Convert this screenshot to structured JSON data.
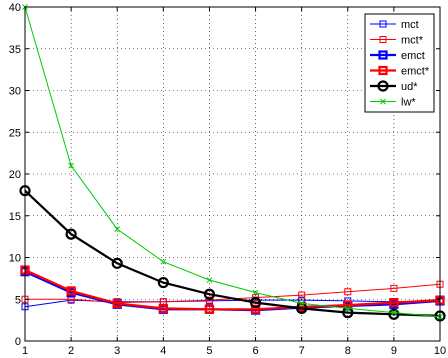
{
  "chart_data": {
    "type": "line",
    "x": [
      1,
      2,
      3,
      4,
      5,
      6,
      7,
      8,
      9,
      10
    ],
    "xlim": [
      1,
      10
    ],
    "ylim": [
      0,
      40
    ],
    "xticks": [
      1,
      2,
      3,
      4,
      5,
      6,
      7,
      8,
      9,
      10
    ],
    "yticks": [
      0,
      5,
      10,
      15,
      20,
      25,
      30,
      35,
      40
    ],
    "grid": true,
    "legend_position": "top-right",
    "series": [
      {
        "name": "mct",
        "values": [
          4.1,
          4.9,
          4.7,
          4.7,
          4.8,
          4.9,
          4.9,
          4.8,
          4.7,
          4.7
        ],
        "color": "#0000ff",
        "marker": "square",
        "bold": false
      },
      {
        "name": "mct*",
        "values": [
          5.0,
          5.0,
          4.6,
          4.7,
          4.9,
          5.2,
          5.5,
          5.9,
          6.3,
          6.8
        ],
        "color": "#ff0000",
        "marker": "square",
        "bold": false
      },
      {
        "name": "emct",
        "values": [
          8.3,
          5.8,
          4.4,
          3.8,
          3.8,
          3.7,
          4.0,
          4.2,
          4.4,
          4.8
        ],
        "color": "#0000ff",
        "marker": "square",
        "bold": true
      },
      {
        "name": "emct*",
        "values": [
          8.5,
          6.0,
          4.5,
          3.9,
          3.8,
          3.8,
          4.1,
          4.3,
          4.6,
          4.9
        ],
        "color": "#ff0000",
        "marker": "square",
        "bold": true
      },
      {
        "name": "ud*",
        "values": [
          18.0,
          12.8,
          9.3,
          7.0,
          5.6,
          4.6,
          3.9,
          3.4,
          3.2,
          3.0
        ],
        "color": "#000000",
        "marker": "circle",
        "bold": true
      },
      {
        "name": "lw*",
        "values": [
          40.0,
          21.0,
          13.4,
          9.5,
          7.3,
          5.8,
          4.5,
          3.9,
          3.4,
          2.9
        ],
        "color": "#00cc00",
        "marker": "x",
        "bold": false
      }
    ]
  }
}
